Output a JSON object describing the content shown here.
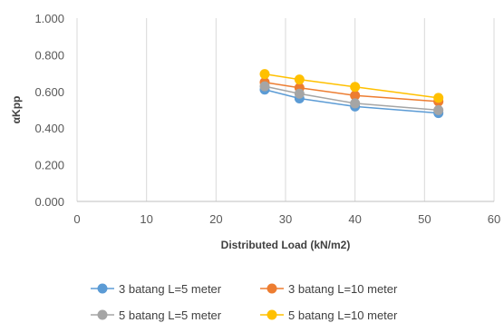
{
  "chart_data": {
    "type": "line",
    "title": "",
    "xlabel": "Distributed Load (kN/m2)",
    "ylabel": "αKpp",
    "xlim": [
      0,
      60
    ],
    "ylim": [
      0,
      1.0
    ],
    "xticks": [
      "0",
      "10",
      "20",
      "30",
      "40",
      "50",
      "60"
    ],
    "yticks": [
      "0.000",
      "0.200",
      "0.400",
      "0.600",
      "0.800",
      "1.000"
    ],
    "grid": "vertical",
    "legend": "bottom",
    "x": [
      27,
      32,
      40,
      52
    ],
    "series": [
      {
        "name": "3 batang L=5 meter",
        "color": "#5B9BD5",
        "values": [
          0.61,
          0.562,
          0.518,
          0.482
        ]
      },
      {
        "name": "3 batang L=10 meter",
        "color": "#ED7D31",
        "values": [
          0.65,
          0.62,
          0.578,
          0.545
        ]
      },
      {
        "name": "5 batang L=5 meter",
        "color": "#A5A5A5",
        "values": [
          0.628,
          0.588,
          0.535,
          0.498
        ]
      },
      {
        "name": "5 batang L=10 meter",
        "color": "#FFC000",
        "values": [
          0.695,
          0.665,
          0.625,
          0.565
        ]
      }
    ]
  }
}
